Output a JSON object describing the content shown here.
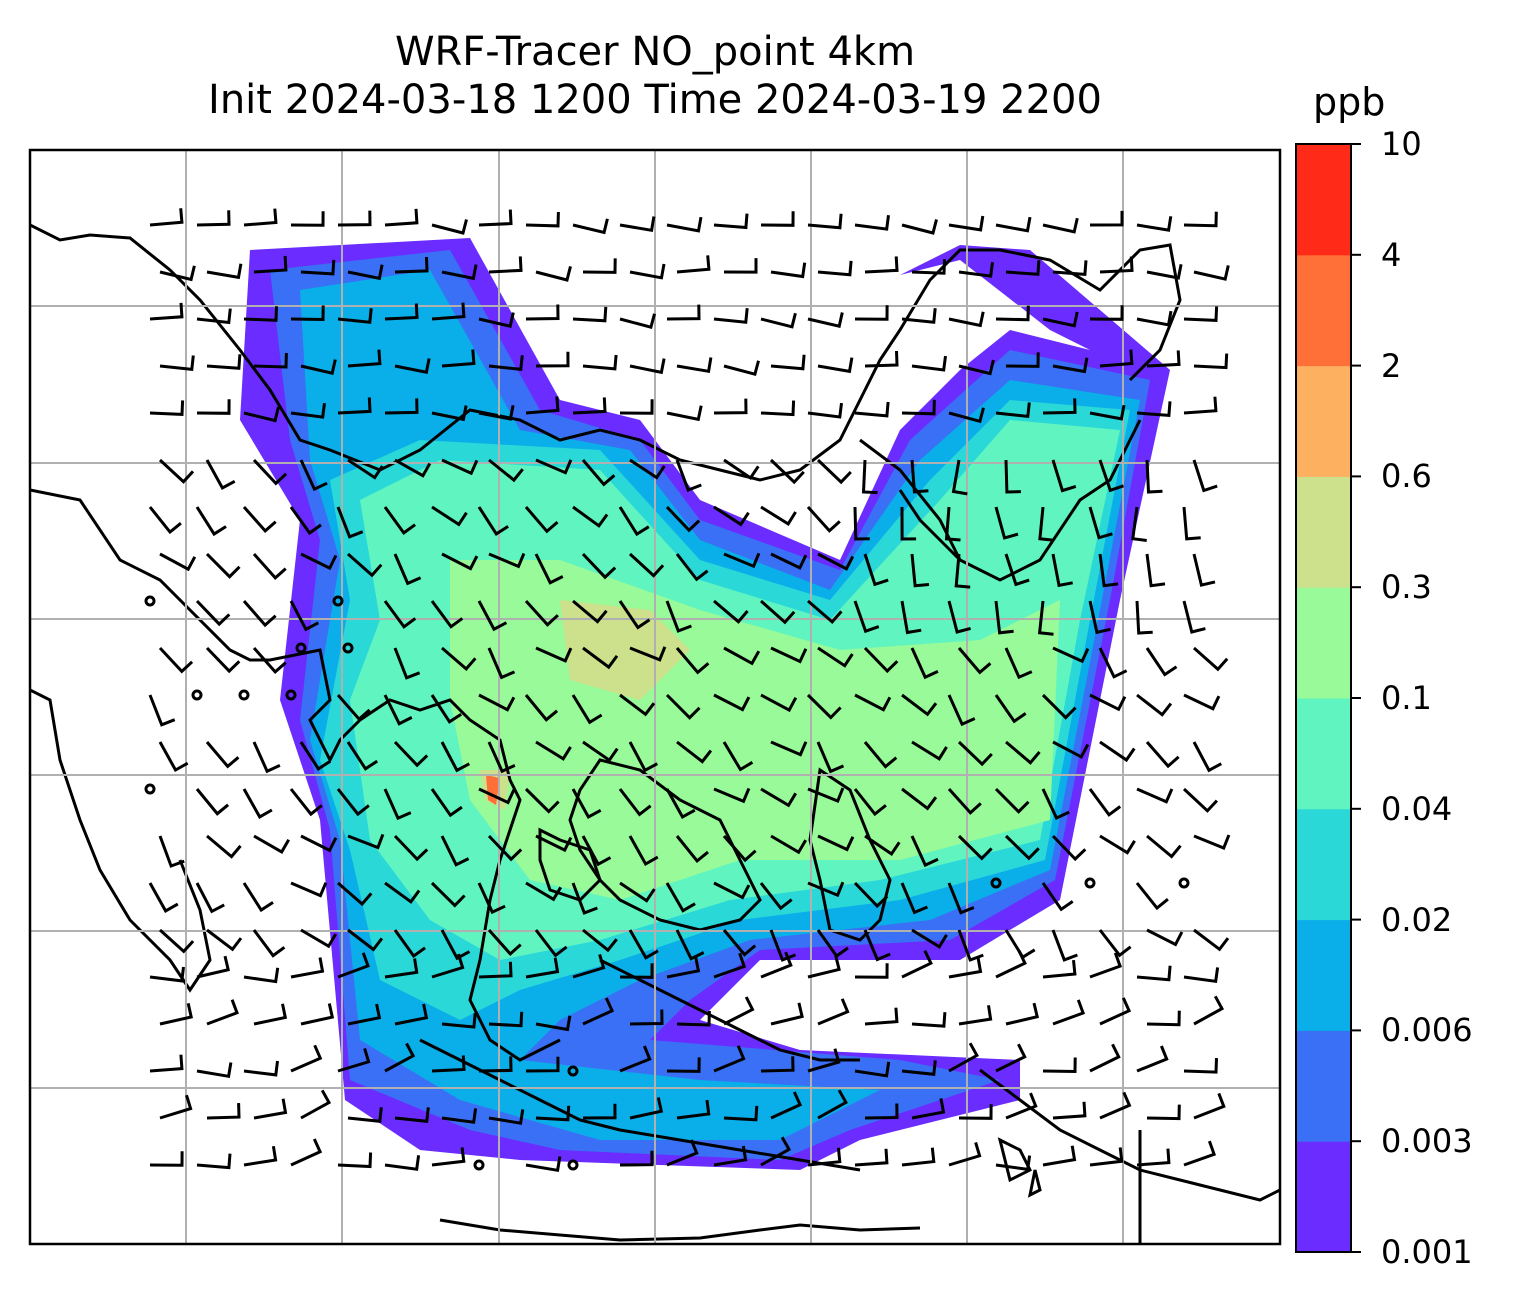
{
  "title": {
    "line1": "WRF-Tracer NO_point 4km",
    "line2": "Init 2024-03-18 1200 Time 2024-03-19 2200"
  },
  "colorbar": {
    "unit": "ppb",
    "ticks": [
      "0.001",
      "0.003",
      "0.006",
      "0.02",
      "0.04",
      "0.1",
      "0.3",
      "0.6",
      "2",
      "4",
      "10"
    ],
    "colors": [
      "#6a2cff",
      "#3a70f5",
      "#0aaee8",
      "#2ad8d8",
      "#60f5c0",
      "#98fa98",
      "#cde08c",
      "#fdb060",
      "#ff7038",
      "#ff2a18"
    ]
  },
  "map": {
    "gridlines": true,
    "overlay": "wind-barbs",
    "field": "NO tracer concentration"
  }
}
